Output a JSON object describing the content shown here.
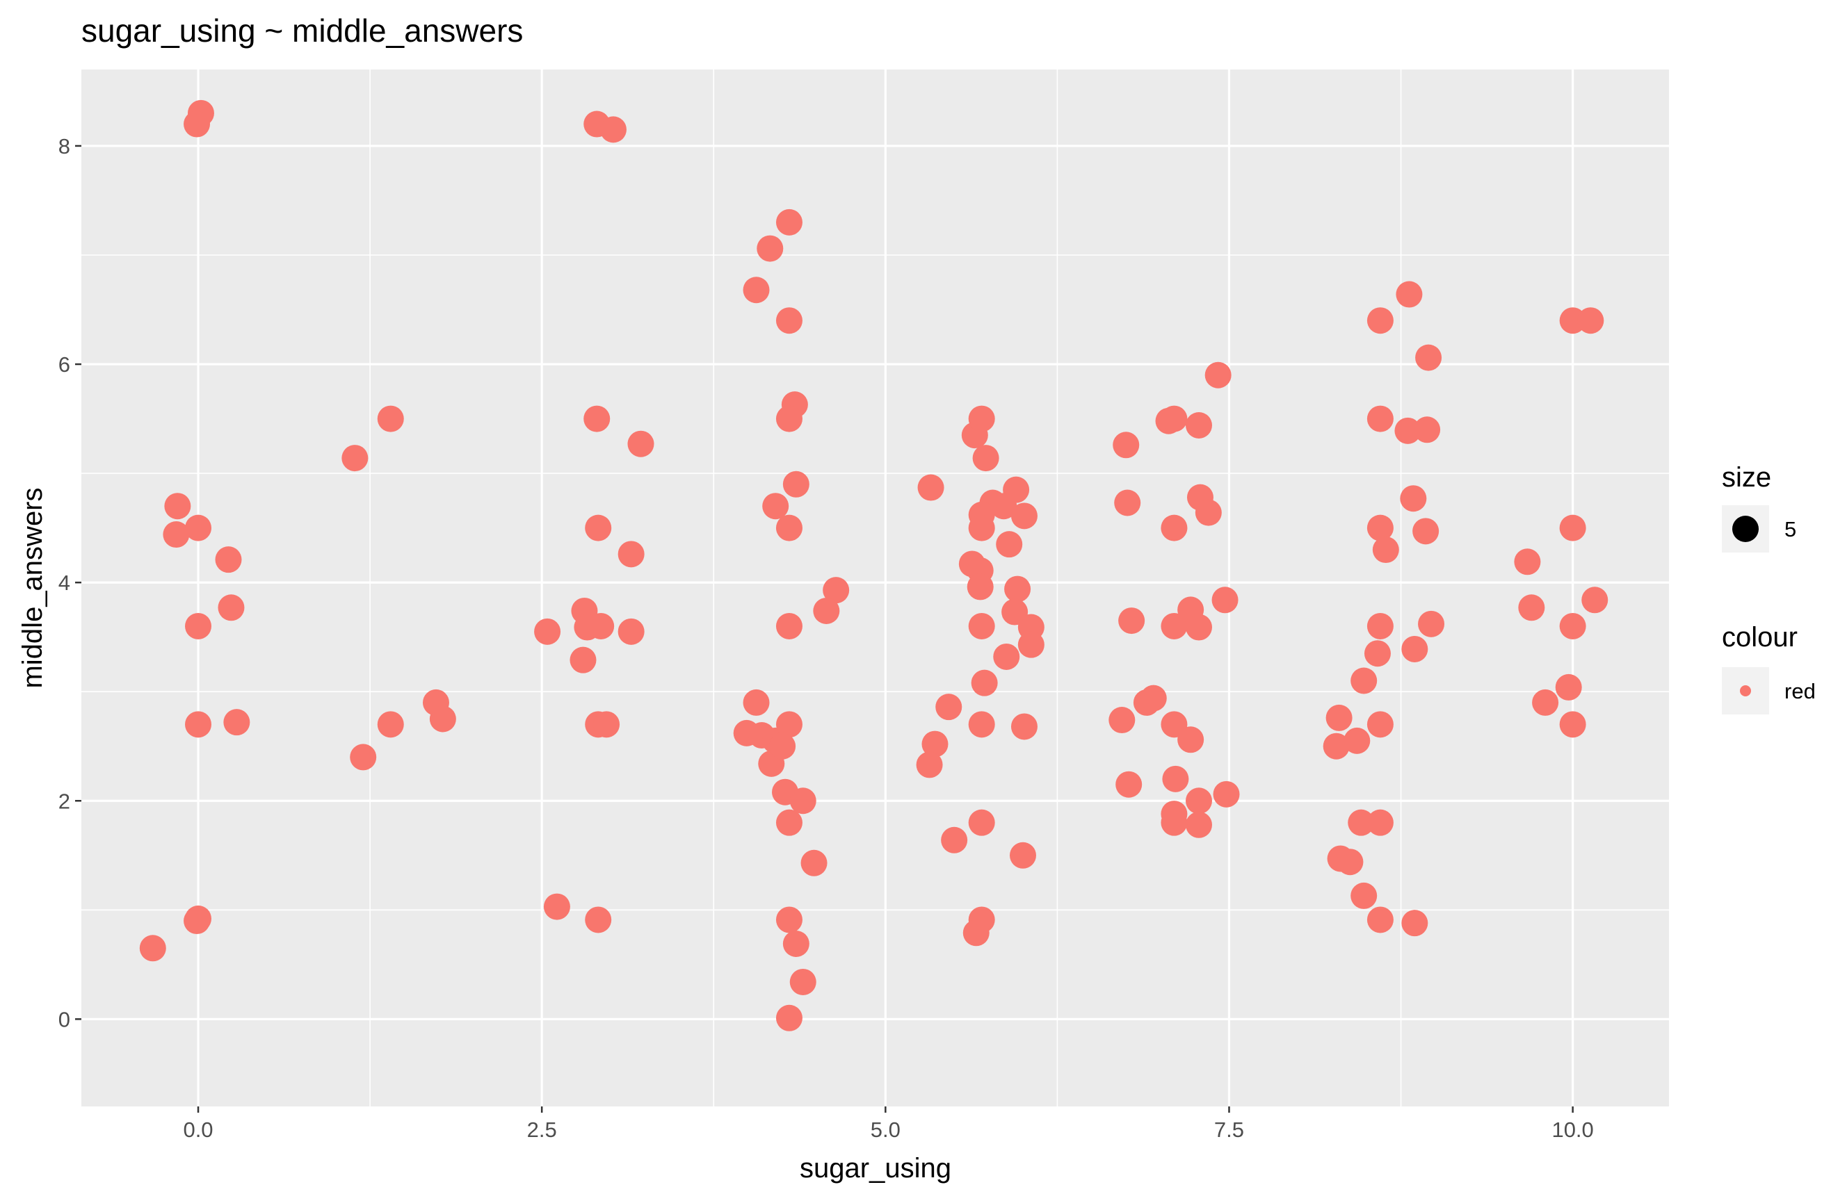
{
  "chart_data": {
    "type": "scatter",
    "title": "sugar_using ~ middle_answers",
    "xlabel": "sugar_using",
    "ylabel": "middle_answers",
    "xlim": [
      -0.85,
      10.7
    ],
    "ylim": [
      -0.8,
      8.7
    ],
    "x_ticks": [
      0.0,
      2.5,
      5.0,
      7.5,
      10.0
    ],
    "x_tick_labels": [
      "0.0",
      "2.5",
      "5.0",
      "7.5",
      "10.0"
    ],
    "x_minor": [
      1.25,
      3.75,
      6.25,
      8.75
    ],
    "y_ticks": [
      0,
      2,
      4,
      6,
      8
    ],
    "y_tick_labels": [
      "0",
      "2",
      "4",
      "6",
      "8"
    ],
    "y_minor": [
      1,
      3,
      5,
      7
    ],
    "grid": true,
    "panel_color": "#EBEBEB",
    "grid_color": "#FFFFFF",
    "point_color": "#F8766D",
    "legend_position": "right",
    "legend": [
      {
        "title": "size",
        "label": "5",
        "color": "#000000"
      },
      {
        "title": "colour",
        "label": "red",
        "color": "#F8766D"
      }
    ],
    "points": [
      [
        0.02,
        8.3
      ],
      [
        -0.01,
        8.2
      ],
      [
        -0.33,
        0.65
      ],
      [
        -0.01,
        0.9
      ],
      [
        0.0,
        0.92
      ],
      [
        -0.15,
        4.7
      ],
      [
        -0.16,
        4.44
      ],
      [
        0.0,
        4.5
      ],
      [
        0.22,
        4.21
      ],
      [
        0.24,
        3.77
      ],
      [
        0.0,
        3.6
      ],
      [
        0.0,
        2.7
      ],
      [
        0.28,
        2.72
      ],
      [
        1.14,
        5.14
      ],
      [
        1.4,
        5.5
      ],
      [
        1.2,
        2.4
      ],
      [
        1.4,
        2.7
      ],
      [
        1.73,
        2.9
      ],
      [
        1.78,
        2.75
      ],
      [
        2.9,
        8.2
      ],
      [
        3.02,
        8.15
      ],
      [
        2.9,
        5.5
      ],
      [
        3.22,
        5.27
      ],
      [
        2.91,
        4.5
      ],
      [
        3.15,
        4.26
      ],
      [
        2.54,
        3.55
      ],
      [
        2.81,
        3.74
      ],
      [
        2.83,
        3.59
      ],
      [
        2.93,
        3.6
      ],
      [
        3.15,
        3.55
      ],
      [
        2.8,
        3.29
      ],
      [
        2.91,
        2.7
      ],
      [
        2.97,
        2.7
      ],
      [
        2.61,
        1.03
      ],
      [
        2.91,
        0.91
      ],
      [
        4.3,
        7.3
      ],
      [
        4.16,
        7.06
      ],
      [
        4.06,
        6.68
      ],
      [
        4.3,
        6.4
      ],
      [
        4.34,
        5.63
      ],
      [
        4.3,
        5.5
      ],
      [
        4.35,
        4.9
      ],
      [
        4.2,
        4.7
      ],
      [
        4.3,
        4.5
      ],
      [
        4.64,
        3.93
      ],
      [
        4.57,
        3.74
      ],
      [
        4.3,
        3.6
      ],
      [
        4.06,
        2.9
      ],
      [
        3.99,
        2.62
      ],
      [
        4.1,
        2.6
      ],
      [
        4.2,
        2.55
      ],
      [
        4.3,
        2.7
      ],
      [
        4.17,
        2.34
      ],
      [
        4.25,
        2.5
      ],
      [
        4.27,
        2.08
      ],
      [
        4.4,
        2.0
      ],
      [
        4.3,
        1.8
      ],
      [
        4.48,
        1.43
      ],
      [
        4.3,
        0.91
      ],
      [
        4.35,
        0.69
      ],
      [
        4.4,
        0.34
      ],
      [
        4.3,
        0.01
      ],
      [
        5.33,
        4.87
      ],
      [
        5.65,
        5.35
      ],
      [
        5.7,
        5.5
      ],
      [
        5.73,
        5.14
      ],
      [
        5.95,
        4.85
      ],
      [
        5.78,
        4.73
      ],
      [
        5.7,
        4.62
      ],
      [
        5.86,
        4.7
      ],
      [
        5.7,
        4.5
      ],
      [
        6.01,
        4.61
      ],
      [
        5.9,
        4.35
      ],
      [
        5.63,
        4.17
      ],
      [
        5.69,
        4.11
      ],
      [
        5.69,
        3.96
      ],
      [
        5.96,
        3.94
      ],
      [
        5.94,
        3.73
      ],
      [
        5.7,
        3.6
      ],
      [
        6.06,
        3.59
      ],
      [
        6.06,
        3.43
      ],
      [
        5.88,
        3.32
      ],
      [
        5.72,
        3.08
      ],
      [
        5.46,
        2.86
      ],
      [
        5.7,
        2.7
      ],
      [
        6.01,
        2.68
      ],
      [
        5.36,
        2.52
      ],
      [
        5.32,
        2.33
      ],
      [
        5.5,
        1.64
      ],
      [
        5.7,
        1.8
      ],
      [
        6.0,
        1.5
      ],
      [
        5.7,
        0.91
      ],
      [
        5.66,
        0.79
      ],
      [
        6.75,
        5.26
      ],
      [
        7.06,
        5.48
      ],
      [
        7.1,
        5.5
      ],
      [
        7.28,
        5.44
      ],
      [
        7.42,
        5.9
      ],
      [
        6.76,
        4.73
      ],
      [
        7.29,
        4.78
      ],
      [
        7.35,
        4.64
      ],
      [
        7.1,
        4.5
      ],
      [
        6.79,
        3.65
      ],
      [
        7.1,
        3.6
      ],
      [
        7.22,
        3.75
      ],
      [
        7.28,
        3.59
      ],
      [
        7.47,
        3.84
      ],
      [
        6.9,
        2.9
      ],
      [
        6.95,
        2.94
      ],
      [
        6.72,
        2.74
      ],
      [
        7.1,
        2.7
      ],
      [
        7.22,
        2.56
      ],
      [
        6.77,
        2.15
      ],
      [
        7.11,
        2.2
      ],
      [
        7.1,
        1.88
      ],
      [
        7.1,
        1.8
      ],
      [
        7.28,
        2.0
      ],
      [
        7.28,
        1.78
      ],
      [
        7.48,
        2.06
      ],
      [
        8.81,
        6.64
      ],
      [
        8.6,
        6.4
      ],
      [
        8.95,
        6.06
      ],
      [
        8.6,
        5.5
      ],
      [
        8.8,
        5.39
      ],
      [
        8.94,
        5.4
      ],
      [
        8.84,
        4.77
      ],
      [
        8.6,
        4.5
      ],
      [
        8.93,
        4.47
      ],
      [
        8.64,
        4.3
      ],
      [
        8.6,
        3.6
      ],
      [
        8.97,
        3.62
      ],
      [
        8.85,
        3.39
      ],
      [
        8.58,
        3.35
      ],
      [
        8.48,
        3.1
      ],
      [
        8.3,
        2.76
      ],
      [
        8.28,
        2.5
      ],
      [
        8.43,
        2.55
      ],
      [
        8.6,
        2.7
      ],
      [
        8.46,
        1.8
      ],
      [
        8.6,
        1.8
      ],
      [
        8.31,
        1.47
      ],
      [
        8.38,
        1.44
      ],
      [
        8.48,
        1.13
      ],
      [
        8.6,
        0.91
      ],
      [
        8.85,
        0.88
      ],
      [
        10.0,
        6.4
      ],
      [
        10.13,
        6.4
      ],
      [
        9.67,
        4.19
      ],
      [
        10.0,
        4.5
      ],
      [
        9.7,
        3.77
      ],
      [
        10.0,
        3.6
      ],
      [
        10.16,
        3.84
      ],
      [
        9.97,
        3.04
      ],
      [
        9.8,
        2.9
      ],
      [
        10.0,
        2.7
      ]
    ]
  }
}
